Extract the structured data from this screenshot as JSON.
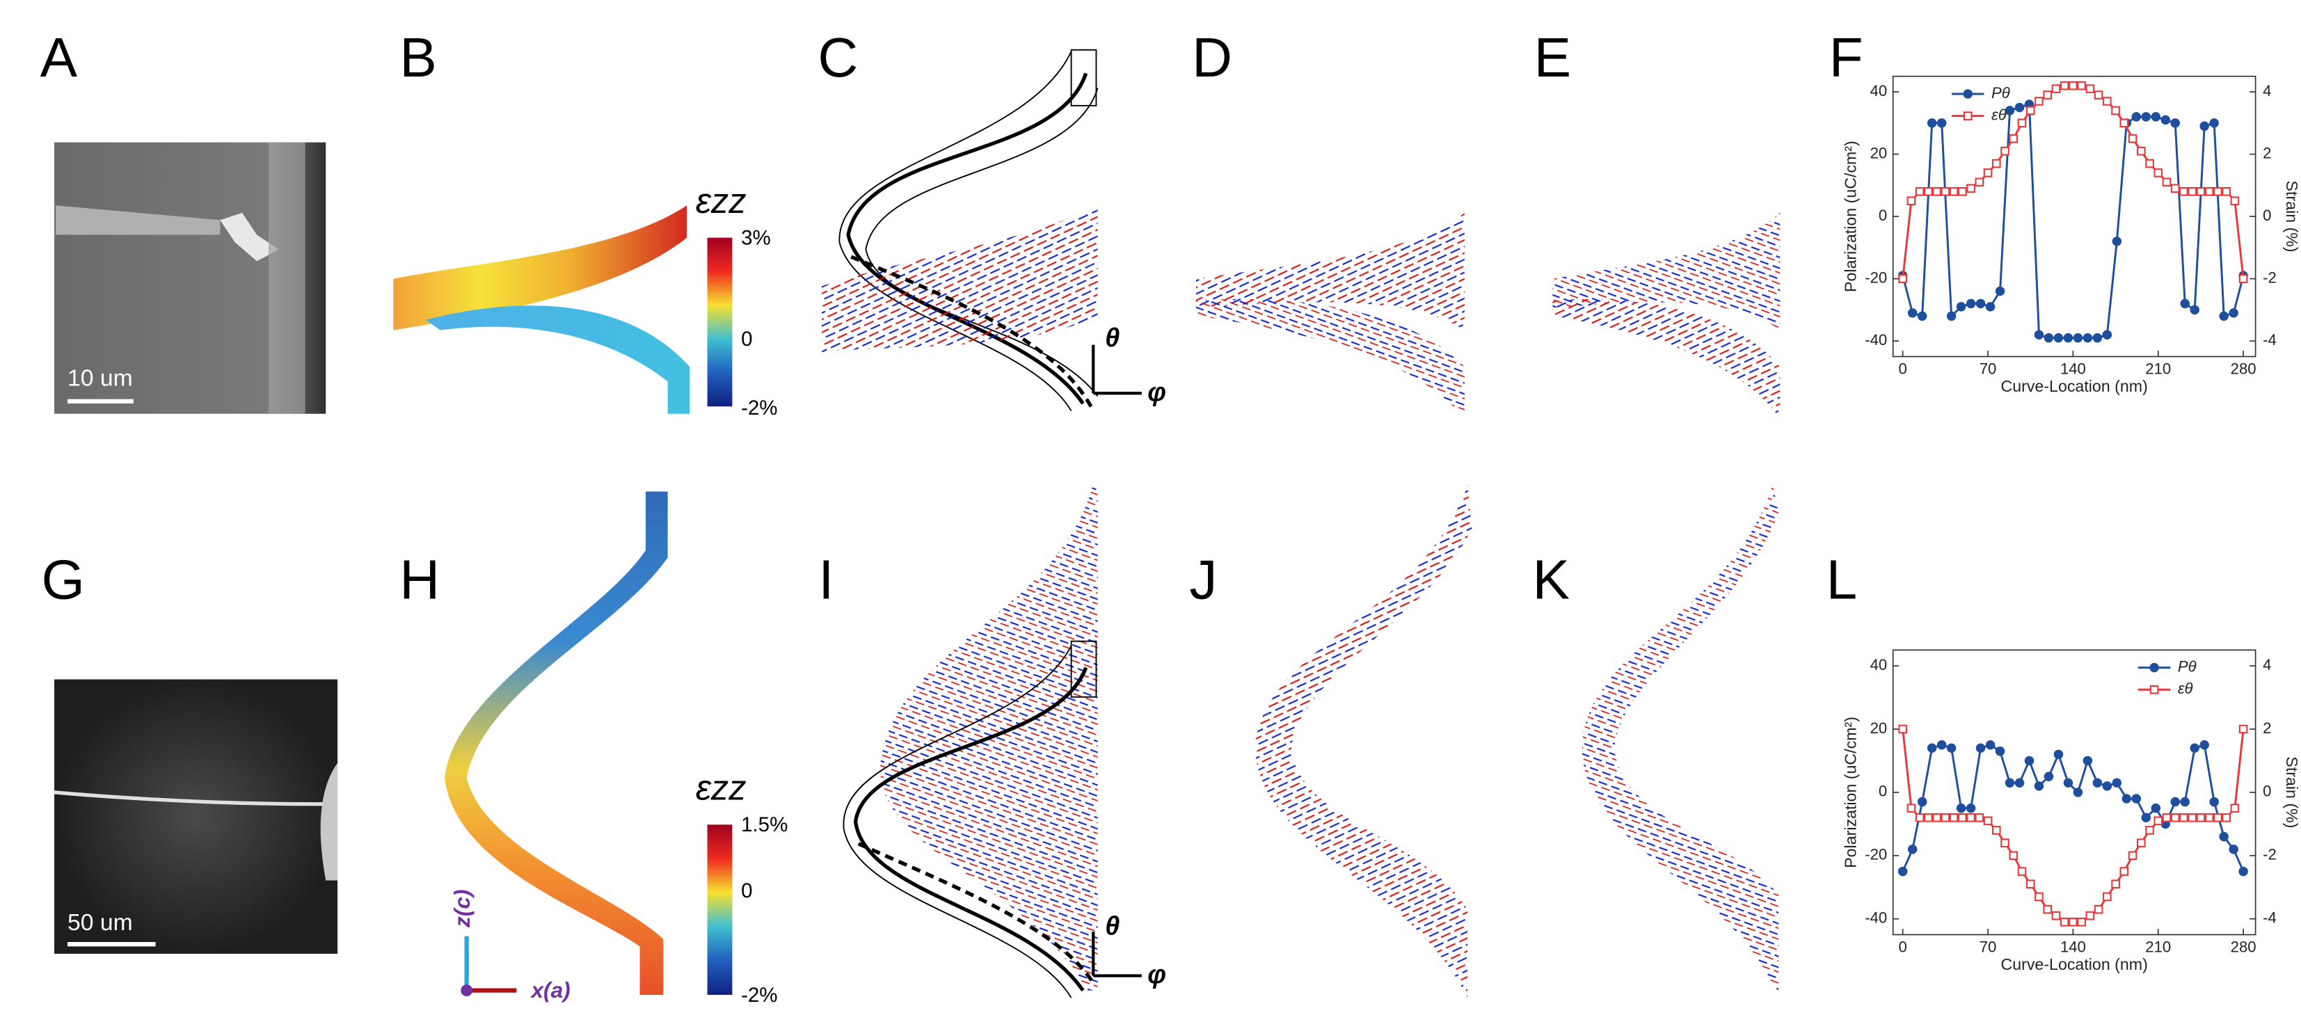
{
  "panels": [
    "A",
    "B",
    "C",
    "D",
    "E",
    "F",
    "G",
    "H",
    "I",
    "J",
    "K",
    "L"
  ],
  "scale_bars": [
    "10 um",
    "50 um"
  ],
  "colorbars": [
    {
      "title": "εzz",
      "labels": [
        "3%",
        "0",
        "-2%"
      ]
    },
    {
      "title": "εzz",
      "labels": [
        "1.5%",
        "0",
        "-2%"
      ]
    }
  ],
  "vector_axes": [
    "θ",
    "φ"
  ],
  "crystal_axes": [
    "z(c)",
    "x(a)"
  ],
  "chart_data": [
    {
      "type": "line",
      "xlabel": "Curve-Location (nm)",
      "ylabel": "Polarization (uC/cm²)",
      "y2label": "Strain (%)",
      "xlim": [
        -8,
        290
      ],
      "xticks": [
        0,
        70,
        140,
        210,
        280
      ],
      "ylim": [
        -45,
        45
      ],
      "yticks": [
        -40,
        -20,
        0,
        20,
        40
      ],
      "y2lim": [
        -4.5,
        4.5
      ],
      "y2ticks": [
        -4,
        -2,
        0,
        2,
        4
      ],
      "legend": "upper left",
      "series": [
        {
          "name": "Pθ",
          "color": "#1f4e9c",
          "marker": "circle",
          "x": [
            0,
            8,
            16,
            24,
            32,
            40,
            48,
            56,
            64,
            72,
            80,
            88,
            96,
            104,
            112,
            120,
            128,
            136,
            144,
            152,
            160,
            168,
            176,
            184,
            192,
            200,
            208,
            216,
            224,
            232,
            240,
            248,
            256,
            264,
            272,
            280
          ],
          "values": [
            -19,
            -31,
            -32,
            30,
            30,
            -32,
            -29,
            -28,
            -28,
            -29,
            -24,
            34,
            35,
            36,
            -38,
            -39,
            -39,
            -39,
            -39,
            -39,
            -39,
            -38,
            -8,
            30,
            32,
            32,
            32,
            31,
            30,
            -28,
            -30,
            29,
            30,
            -32,
            -31,
            -19
          ]
        },
        {
          "name": "εθ",
          "color": "#e8383b",
          "marker": "square",
          "axis": "y2",
          "x": [
            0,
            7,
            14,
            21,
            28,
            35,
            42,
            49,
            56,
            63,
            70,
            77,
            84,
            91,
            98,
            105,
            112,
            119,
            126,
            133,
            140,
            147,
            154,
            161,
            168,
            175,
            182,
            189,
            196,
            203,
            210,
            217,
            224,
            231,
            238,
            245,
            252,
            259,
            266,
            273,
            280
          ],
          "values": [
            -2,
            0.5,
            0.8,
            0.8,
            0.8,
            0.8,
            0.8,
            0.8,
            0.9,
            1.1,
            1.4,
            1.7,
            2.1,
            2.5,
            3.0,
            3.4,
            3.7,
            3.9,
            4.1,
            4.2,
            4.2,
            4.2,
            4.1,
            3.9,
            3.7,
            3.4,
            3.0,
            2.5,
            2.1,
            1.7,
            1.4,
            1.1,
            0.9,
            0.8,
            0.8,
            0.8,
            0.8,
            0.8,
            0.8,
            0.5,
            -2
          ]
        }
      ]
    },
    {
      "type": "line",
      "xlabel": "Curve-Location (nm)",
      "ylabel": "Polarization (uC/cm²)",
      "y2label": "Strain (%)",
      "xlim": [
        -8,
        290
      ],
      "xticks": [
        0,
        70,
        140,
        210,
        280
      ],
      "ylim": [
        -45,
        45
      ],
      "yticks": [
        -40,
        -20,
        0,
        20,
        40
      ],
      "y2lim": [
        -4.5,
        4.5
      ],
      "y2ticks": [
        -4,
        -2,
        0,
        2,
        4
      ],
      "legend": "upper right",
      "series": [
        {
          "name": "Pθ",
          "color": "#1f4e9c",
          "marker": "circle",
          "x": [
            0,
            8,
            16,
            24,
            32,
            40,
            48,
            56,
            64,
            72,
            80,
            88,
            96,
            104,
            112,
            120,
            128,
            136,
            144,
            152,
            160,
            168,
            176,
            184,
            192,
            200,
            208,
            216,
            224,
            232,
            240,
            248,
            256,
            264,
            272,
            280
          ],
          "values": [
            -25,
            -18,
            -3,
            14,
            15,
            14,
            -5,
            -5,
            14,
            15,
            13,
            3,
            3,
            10,
            2,
            5,
            12,
            3,
            0,
            10,
            3,
            2,
            3,
            -2,
            -2,
            -8,
            -5,
            -10,
            -3,
            -3,
            14,
            15,
            -3,
            -14,
            -18,
            -25
          ]
        },
        {
          "name": "εθ",
          "color": "#e8383b",
          "marker": "square",
          "axis": "y2",
          "x": [
            0,
            7,
            14,
            21,
            28,
            35,
            42,
            49,
            56,
            63,
            70,
            77,
            84,
            91,
            98,
            105,
            112,
            119,
            126,
            133,
            140,
            147,
            154,
            161,
            168,
            175,
            182,
            189,
            196,
            203,
            210,
            217,
            224,
            231,
            238,
            245,
            252,
            259,
            266,
            273,
            280
          ],
          "values": [
            2,
            -0.5,
            -0.8,
            -0.8,
            -0.8,
            -0.8,
            -0.8,
            -0.8,
            -0.8,
            -0.8,
            -0.9,
            -1.2,
            -1.6,
            -2.0,
            -2.5,
            -2.9,
            -3.3,
            -3.7,
            -3.9,
            -4.1,
            -4.1,
            -4.1,
            -3.9,
            -3.7,
            -3.3,
            -2.9,
            -2.5,
            -2.0,
            -1.6,
            -1.2,
            -0.9,
            -0.8,
            -0.8,
            -0.8,
            -0.8,
            -0.8,
            -0.8,
            -0.8,
            -0.8,
            -0.5,
            2
          ]
        }
      ]
    }
  ]
}
